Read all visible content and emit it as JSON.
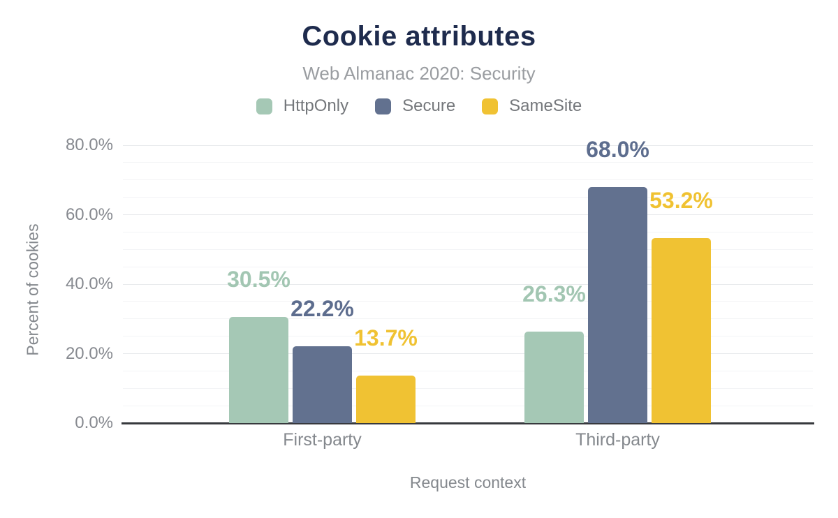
{
  "chart_data": {
    "type": "bar",
    "title": "Cookie attributes",
    "subtitle": "Web Almanac 2020: Security",
    "categories": [
      "First-party",
      "Third-party"
    ],
    "series": [
      {
        "name": "HttpOnly",
        "color": "#a5c8b5",
        "label_color": "#a2c6b2",
        "values": [
          30.5,
          26.3
        ],
        "data_labels": [
          "30.5%",
          "26.3%"
        ]
      },
      {
        "name": "Secure",
        "color": "#62718f",
        "label_color": "#5d6d8e",
        "values": [
          22.2,
          68.0
        ],
        "data_labels": [
          "22.2%",
          "68.0%"
        ]
      },
      {
        "name": "SameSite",
        "color": "#f0c233",
        "label_color": "#f0c232",
        "values": [
          13.7,
          53.2
        ],
        "data_labels": [
          "13.7%",
          "53.2%"
        ]
      }
    ],
    "xlabel": "Request context",
    "ylabel": "Percent of cookies",
    "ylim": [
      0,
      80
    ],
    "yticks": [
      {
        "value": 0,
        "label": "0.0%"
      },
      {
        "value": 20,
        "label": "20.0%"
      },
      {
        "value": 40,
        "label": "40.0%"
      },
      {
        "value": 60,
        "label": "60.0%"
      },
      {
        "value": 80,
        "label": "80.0%"
      }
    ],
    "grid": {
      "minor_step": 5,
      "major_step": 20,
      "minor_on": true
    },
    "legend_position": "top",
    "colors": {
      "title": "#1e2b4d",
      "subtitle": "#9a9da1",
      "axis_text": "#84888d",
      "axis_line": "#37393d",
      "grid_major": "#e8eaed",
      "grid_minor": "#f3f4f6"
    }
  }
}
